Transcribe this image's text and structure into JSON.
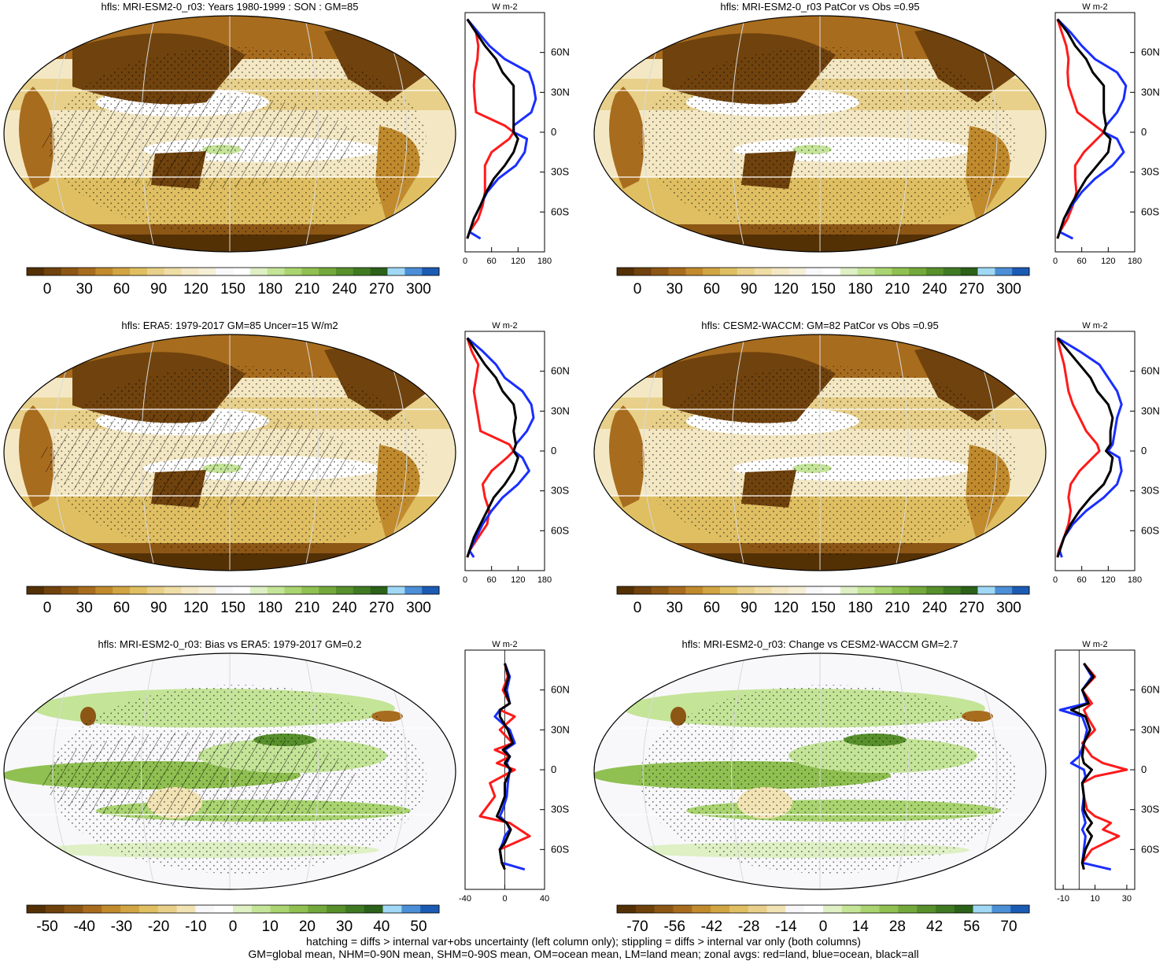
{
  "footnotes": [
    "hatching = diffs > internal var+obs uncertainty (left column only); stippling = diffs > internal var only (both columns)",
    "GM=global mean, NHM=0-90N mean, SHM=0-90S mean, OM=ocean mean, LM=land mean; zonal avgs: red=land, blue=ocean, black=all"
  ],
  "colors": {
    "land": "#ff1a1a",
    "ocean": "#1a2eff",
    "all": "#000000",
    "palette_abs": [
      "#543005",
      "#70420d",
      "#8c5615",
      "#a86c1e",
      "#c08a2d",
      "#d1a543",
      "#dfbf62",
      "#e8d08a",
      "#efdda6",
      "#f4e8c4",
      "#f6efd8",
      "#f8f8fb",
      "#ffffff",
      "#def0c4",
      "#c4e497",
      "#a9d470",
      "#8fc051",
      "#73a93c",
      "#58902c",
      "#3f7a22",
      "#2b6118",
      "#a0d8f6",
      "#4c8fd6",
      "#1c5bb4"
    ],
    "palette_diff": [
      "#543005",
      "#6f410b",
      "#8c5615",
      "#a86c1e",
      "#c08a2d",
      "#d1a543",
      "#dfbf62",
      "#e8d08a",
      "#f2e3b4",
      "#f8f8fb",
      "#ffffff",
      "#def0c4",
      "#c4e497",
      "#a9d470",
      "#8fc051",
      "#73a93c",
      "#58902c",
      "#3f7a22",
      "#2b6118",
      "#a0d8f6",
      "#4c8fd6",
      "#1c5bb4"
    ]
  },
  "panels": [
    {
      "title": "hfls: MRI-ESM2-0_r03: Years 1980-1999 : SON : GM=85",
      "kind": "abs",
      "colorbar_ticks": [
        "0",
        "30",
        "60",
        "90",
        "120",
        "150",
        "180",
        "210",
        "240",
        "270",
        "300"
      ]
    },
    {
      "title": "hfls: MRI-ESM2-0_r03 PatCor vs Obs =0.95",
      "kind": "abs",
      "colorbar_ticks": [
        "0",
        "30",
        "60",
        "90",
        "120",
        "150",
        "180",
        "210",
        "240",
        "270",
        "300"
      ]
    },
    {
      "title": "hfls: ERA5: 1979-2017 GM=85 Uncer=15 W/m2",
      "kind": "abs",
      "colorbar_ticks": [
        "0",
        "30",
        "60",
        "90",
        "120",
        "150",
        "180",
        "210",
        "240",
        "270",
        "300"
      ]
    },
    {
      "title": "hfls: CESM2-WACCM: GM=82 PatCor vs Obs =0.95",
      "kind": "abs",
      "colorbar_ticks": [
        "0",
        "30",
        "60",
        "90",
        "120",
        "150",
        "180",
        "210",
        "240",
        "270",
        "300"
      ]
    },
    {
      "title": "hfls: MRI-ESM2-0_r03: Bias vs ERA5: 1979-2017  GM=0.2",
      "kind": "diff",
      "colorbar_ticks": [
        "-50",
        "-40",
        "-30",
        "-20",
        "-10",
        "0",
        "10",
        "20",
        "30",
        "40",
        "50"
      ]
    },
    {
      "title": "hfls: MRI-ESM2-0_r03: Change vs CESM2-WACCM GM=2.7",
      "kind": "diff",
      "colorbar_ticks": [
        "-70",
        "-56",
        "-42",
        "-28",
        "-14",
        "0",
        "14",
        "28",
        "42",
        "56",
        "70"
      ]
    }
  ],
  "chart_data": [
    {
      "type": "line",
      "panel": 1,
      "units_label": "W m-2",
      "xlim": [
        0,
        180
      ],
      "xticks": [
        0,
        60,
        120,
        180
      ],
      "ylim": [
        -90,
        90
      ],
      "yticks": [
        {
          "v": 60,
          "label": "60N"
        },
        {
          "v": 30,
          "label": "30N"
        },
        {
          "v": 0,
          "label": "0"
        },
        {
          "v": -30,
          "label": "30S"
        },
        {
          "v": -60,
          "label": "60S"
        }
      ],
      "y": [
        85,
        75,
        65,
        55,
        45,
        35,
        25,
        15,
        5,
        0,
        -5,
        -15,
        -25,
        -35,
        -45,
        -55,
        -65,
        -75,
        -80
      ],
      "series": [
        {
          "role": "land",
          "x": [
            5,
            25,
            30,
            28,
            22,
            20,
            22,
            25,
            90,
            110,
            100,
            60,
            45,
            45,
            45,
            40,
            30,
            10,
            5
          ]
        },
        {
          "role": "ocean",
          "x": [
            5,
            30,
            55,
            90,
            145,
            155,
            160,
            150,
            110,
            110,
            140,
            135,
            115,
            75,
            50,
            35,
            20,
            10,
            35
          ]
        },
        {
          "role": "all",
          "x": [
            5,
            25,
            45,
            70,
            85,
            110,
            110,
            110,
            110,
            110,
            120,
            110,
            90,
            65,
            48,
            35,
            20,
            10,
            5
          ]
        }
      ]
    },
    {
      "type": "line",
      "panel": 2,
      "units_label": "W m-2",
      "xlim": [
        0,
        180
      ],
      "xticks": [
        0,
        60,
        120,
        180
      ],
      "ylim": [
        -90,
        90
      ],
      "yticks": [
        {
          "v": 60,
          "label": "60N"
        },
        {
          "v": 30,
          "label": "30N"
        },
        {
          "v": 0,
          "label": "0"
        },
        {
          "v": -30,
          "label": "30S"
        },
        {
          "v": -60,
          "label": "60S"
        }
      ],
      "y": [
        85,
        75,
        65,
        55,
        45,
        35,
        25,
        15,
        5,
        0,
        -5,
        -15,
        -25,
        -35,
        -45,
        -55,
        -65,
        -75,
        -80
      ],
      "series": [
        {
          "role": "land",
          "x": [
            5,
            15,
            25,
            30,
            28,
            30,
            40,
            50,
            90,
            110,
            95,
            65,
            45,
            45,
            48,
            40,
            28,
            10,
            5
          ]
        },
        {
          "role": "ocean",
          "x": [
            5,
            35,
            60,
            90,
            140,
            160,
            155,
            140,
            115,
            110,
            140,
            155,
            130,
            90,
            60,
            38,
            20,
            10,
            40
          ]
        },
        {
          "role": "all",
          "x": [
            5,
            28,
            45,
            70,
            85,
            110,
            110,
            110,
            115,
            110,
            125,
            120,
            95,
            70,
            52,
            35,
            20,
            10,
            5
          ]
        }
      ]
    },
    {
      "type": "line",
      "panel": 3,
      "units_label": "W m-2",
      "xlim": [
        0,
        180
      ],
      "xticks": [
        0,
        60,
        120,
        180
      ],
      "ylim": [
        -90,
        90
      ],
      "yticks": [
        {
          "v": 60,
          "label": "60N"
        },
        {
          "v": 30,
          "label": "30N"
        },
        {
          "v": 0,
          "label": "0"
        },
        {
          "v": -30,
          "label": "30S"
        },
        {
          "v": -60,
          "label": "60S"
        }
      ],
      "y": [
        85,
        75,
        65,
        55,
        45,
        35,
        25,
        15,
        5,
        0,
        -5,
        -15,
        -25,
        -35,
        -45,
        -55,
        -65,
        -75,
        -80
      ],
      "series": [
        {
          "role": "land",
          "x": [
            5,
            15,
            30,
            25,
            20,
            25,
            30,
            35,
            100,
            110,
            95,
            60,
            40,
            45,
            55,
            50,
            30,
            10,
            5
          ]
        },
        {
          "role": "ocean",
          "x": [
            5,
            40,
            70,
            90,
            130,
            150,
            155,
            140,
            115,
            110,
            130,
            145,
            120,
            85,
            60,
            40,
            25,
            10,
            20
          ]
        },
        {
          "role": "all",
          "x": [
            5,
            25,
            45,
            70,
            85,
            110,
            115,
            110,
            115,
            110,
            120,
            110,
            90,
            65,
            50,
            35,
            20,
            10,
            5
          ]
        }
      ]
    },
    {
      "type": "line",
      "panel": 4,
      "units_label": "W m-2",
      "xlim": [
        0,
        180
      ],
      "xticks": [
        0,
        60,
        120,
        180
      ],
      "ylim": [
        -90,
        90
      ],
      "yticks": [
        {
          "v": 60,
          "label": "60N"
        },
        {
          "v": 30,
          "label": "30N"
        },
        {
          "v": 0,
          "label": "0"
        },
        {
          "v": -30,
          "label": "30S"
        },
        {
          "v": -60,
          "label": "60S"
        }
      ],
      "y": [
        85,
        75,
        65,
        55,
        45,
        35,
        25,
        15,
        5,
        0,
        -5,
        -15,
        -25,
        -35,
        -45,
        -55,
        -65,
        -75,
        -80
      ],
      "series": [
        {
          "role": "land",
          "x": [
            5,
            12,
            20,
            25,
            30,
            40,
            55,
            70,
            95,
            100,
            85,
            55,
            35,
            30,
            35,
            30,
            20,
            8,
            5
          ]
        },
        {
          "role": "ocean",
          "x": [
            5,
            55,
            100,
            120,
            140,
            150,
            140,
            135,
            130,
            120,
            145,
            150,
            140,
            110,
            70,
            40,
            20,
            10,
            15
          ]
        },
        {
          "role": "all",
          "x": [
            5,
            30,
            55,
            80,
            95,
            120,
            130,
            125,
            125,
            115,
            130,
            125,
            110,
            80,
            55,
            35,
            20,
            10,
            5
          ]
        }
      ]
    },
    {
      "type": "line",
      "panel": 5,
      "units_label": "W m-2",
      "xlim": [
        -40,
        40
      ],
      "xticks": [
        -40,
        0,
        40
      ],
      "ylim": [
        -90,
        90
      ],
      "yticks": [
        {
          "v": 60,
          "label": "60N"
        },
        {
          "v": 30,
          "label": "30N"
        },
        {
          "v": 0,
          "label": "0"
        },
        {
          "v": -30,
          "label": "30S"
        },
        {
          "v": -60,
          "label": "60S"
        }
      ],
      "y": [
        80,
        70,
        60,
        50,
        45,
        40,
        30,
        20,
        15,
        10,
        5,
        0,
        -10,
        -20,
        -30,
        -35,
        -40,
        -45,
        -50,
        -55,
        -60,
        -70,
        -75
      ],
      "series": [
        {
          "role": "land",
          "x": [
            0,
            3,
            -2,
            5,
            -5,
            10,
            -5,
            8,
            -10,
            5,
            -8,
            10,
            -15,
            -10,
            -20,
            -25,
            5,
            15,
            25,
            10,
            -5,
            -3,
            0
          ]
        },
        {
          "role": "ocean",
          "x": [
            0,
            5,
            2,
            5,
            -5,
            -10,
            5,
            10,
            0,
            5,
            2,
            5,
            3,
            2,
            -2,
            -5,
            2,
            5,
            0,
            -2,
            -5,
            -3,
            20
          ]
        },
        {
          "role": "all",
          "x": [
            0,
            4,
            0,
            5,
            -5,
            -5,
            3,
            8,
            -2,
            5,
            0,
            6,
            0,
            0,
            -5,
            -8,
            2,
            6,
            3,
            0,
            -5,
            -3,
            0
          ]
        }
      ]
    },
    {
      "type": "line",
      "panel": 6,
      "units_label": "W m-2",
      "xlim": [
        -15,
        35
      ],
      "xticks": [
        -10,
        10,
        30
      ],
      "ylim": [
        -90,
        90
      ],
      "yticks": [
        {
          "v": 60,
          "label": "60N"
        },
        {
          "v": 30,
          "label": "30N"
        },
        {
          "v": 0,
          "label": "0"
        },
        {
          "v": -30,
          "label": "30S"
        },
        {
          "v": -60,
          "label": "60S"
        }
      ],
      "y": [
        80,
        70,
        60,
        50,
        45,
        40,
        30,
        20,
        10,
        5,
        0,
        -5,
        -10,
        -20,
        -30,
        -35,
        -40,
        -45,
        -50,
        -60,
        -70,
        -75
      ],
      "series": [
        {
          "role": "land",
          "x": [
            3,
            10,
            2,
            8,
            3,
            5,
            10,
            2,
            8,
            15,
            30,
            10,
            2,
            3,
            5,
            10,
            20,
            15,
            25,
            8,
            2,
            3
          ]
        },
        {
          "role": "ocean",
          "x": [
            3,
            8,
            2,
            5,
            -12,
            2,
            5,
            3,
            0,
            -5,
            3,
            4,
            2,
            3,
            2,
            3,
            4,
            2,
            4,
            3,
            2,
            20
          ]
        },
        {
          "role": "all",
          "x": [
            3,
            9,
            2,
            6,
            -5,
            4,
            7,
            3,
            2,
            3,
            8,
            5,
            2,
            3,
            3,
            5,
            8,
            5,
            8,
            4,
            2,
            3
          ]
        }
      ]
    }
  ]
}
